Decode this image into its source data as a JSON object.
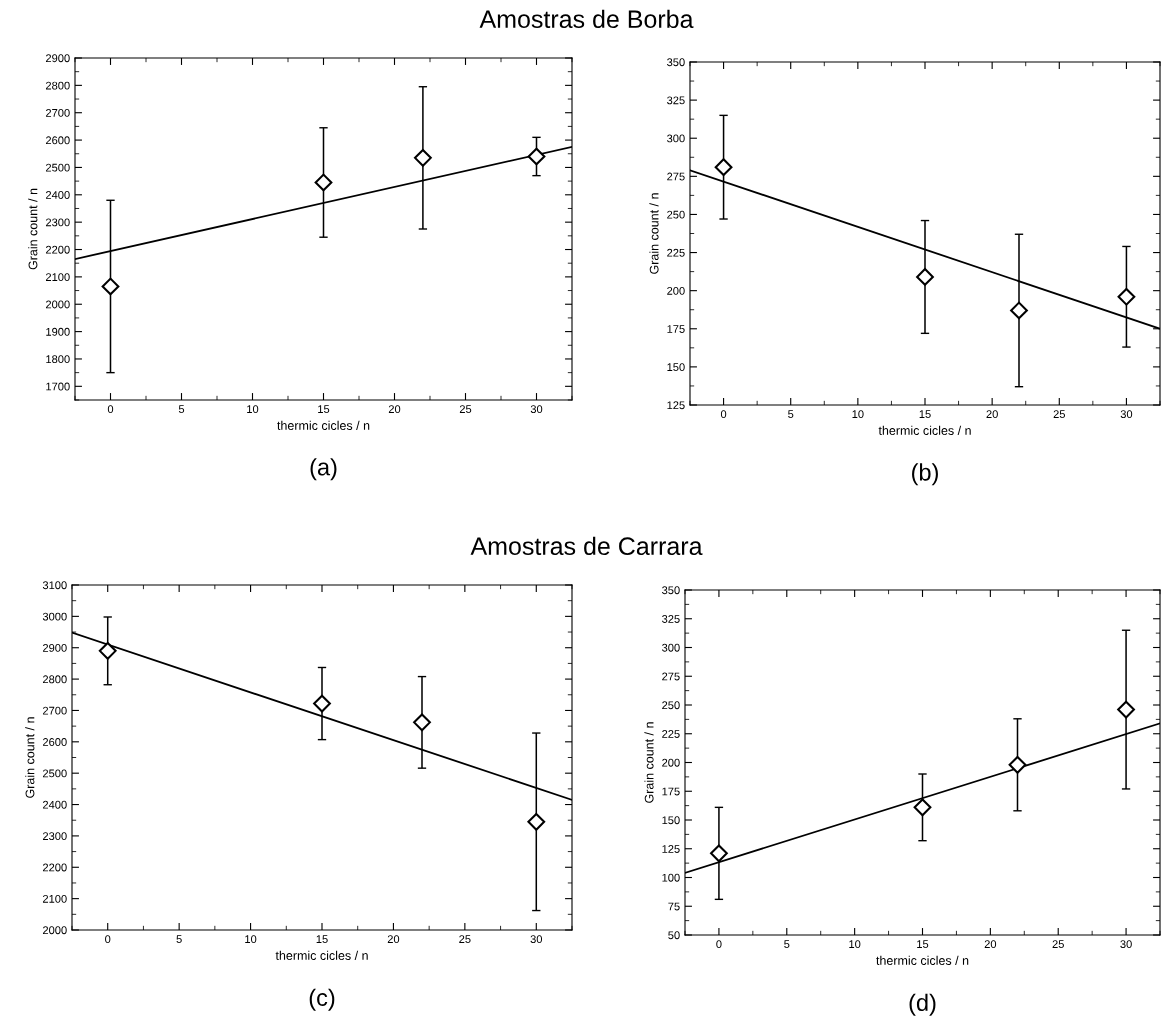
{
  "chart_data": [
    {
      "type": "scatter",
      "title": "Amostras de Borba",
      "annotations": [
        "(a)"
      ],
      "xlabel": "thermic cicles / n",
      "ylabel": "Grain count / n",
      "xlim": [
        -2.5,
        32.5
      ],
      "xticks": [
        0,
        5,
        10,
        15,
        20,
        25,
        30
      ],
      "ylim": [
        1650,
        2900
      ],
      "yticks": [
        1700,
        1800,
        1900,
        2000,
        2100,
        2200,
        2300,
        2400,
        2500,
        2600,
        2700,
        2800,
        2900
      ],
      "grid": false,
      "legend": false,
      "series": [
        {
          "marker": "diamond",
          "color": "#000000",
          "x": [
            0,
            15,
            22,
            30
          ],
          "values": [
            2065,
            2445,
            2535,
            2540
          ],
          "errors": [
            315,
            200,
            260,
            70
          ]
        },
        {
          "type": "line",
          "color": "#000000",
          "x": [
            -2.5,
            32.5
          ],
          "values": [
            2165,
            2575
          ]
        }
      ]
    },
    {
      "type": "scatter",
      "annotations": [
        "(b)"
      ],
      "xlabel": "thermic cicles / n",
      "ylabel": "Grain count / n",
      "xlim": [
        -2.5,
        32.5
      ],
      "xticks": [
        0,
        5,
        10,
        15,
        20,
        25,
        30
      ],
      "ylim": [
        125,
        350
      ],
      "yticks": [
        125,
        150,
        175,
        200,
        225,
        250,
        275,
        300,
        325,
        350
      ],
      "grid": false,
      "legend": false,
      "series": [
        {
          "marker": "diamond",
          "color": "#000000",
          "x": [
            0,
            15,
            22,
            30
          ],
          "values": [
            281,
            209,
            187,
            196
          ],
          "errors": [
            34,
            37,
            50,
            33
          ]
        },
        {
          "type": "line",
          "color": "#000000",
          "x": [
            -2.5,
            32.5
          ],
          "values": [
            279,
            175
          ]
        }
      ]
    },
    {
      "type": "scatter",
      "title": "Amostras de Carrara",
      "annotations": [
        "(c)"
      ],
      "xlabel": "thermic cicles / n",
      "ylabel": "Grain count / n",
      "xlim": [
        -2.5,
        32.5
      ],
      "xticks": [
        0,
        5,
        10,
        15,
        20,
        25,
        30
      ],
      "ylim": [
        2000,
        3100
      ],
      "yticks": [
        2000,
        2100,
        2200,
        2300,
        2400,
        2500,
        2600,
        2700,
        2800,
        2900,
        3000,
        3100
      ],
      "grid": false,
      "legend": false,
      "series": [
        {
          "marker": "diamond",
          "color": "#000000",
          "x": [
            0,
            15,
            22,
            30
          ],
          "values": [
            2890,
            2722,
            2662,
            2345
          ],
          "errors": [
            108,
            115,
            146,
            283
          ]
        },
        {
          "type": "line",
          "color": "#000000",
          "x": [
            -2.5,
            32.5
          ],
          "values": [
            2948,
            2415
          ]
        }
      ]
    },
    {
      "type": "scatter",
      "annotations": [
        "(d)"
      ],
      "xlabel": "thermic cicles / n",
      "ylabel": "Grain count / n",
      "xlim": [
        -2.5,
        32.5
      ],
      "xticks": [
        0,
        5,
        10,
        15,
        20,
        25,
        30
      ],
      "ylim": [
        50,
        350
      ],
      "yticks": [
        50,
        75,
        100,
        125,
        150,
        175,
        200,
        225,
        250,
        275,
        300,
        325,
        350
      ],
      "grid": false,
      "legend": false,
      "series": [
        {
          "marker": "diamond",
          "color": "#000000",
          "x": [
            0,
            15,
            22,
            30
          ],
          "values": [
            121,
            161,
            198,
            246
          ],
          "errors": [
            40,
            29,
            40,
            69
          ]
        },
        {
          "type": "line",
          "color": "#000000",
          "x": [
            -2.5,
            32.5
          ],
          "values": [
            104,
            234
          ]
        }
      ]
    }
  ]
}
